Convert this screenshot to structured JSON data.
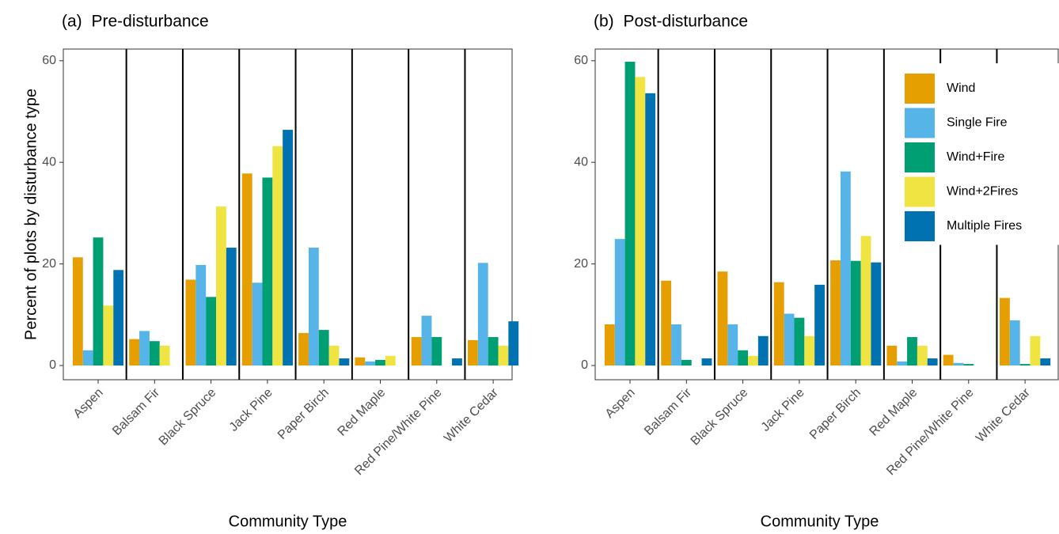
{
  "chart_data": [
    {
      "type": "bar",
      "title": "(a) Pre-disturbance",
      "xlabel": "Community Type",
      "ylabel": "Percent of plots by disturbance type",
      "categories": [
        "Aspen",
        "Balsam Fir",
        "Black Spruce",
        "Jack Pine",
        "Paper Birch",
        "Red Maple",
        "Red Pine/White Pine",
        "White Cedar"
      ],
      "series": [
        {
          "color": "#E69F00",
          "values": [
            21.3,
            5.2,
            16.9,
            37.8,
            6.4,
            1.6,
            5.6,
            5.0
          ]
        },
        {
          "color": "#56B4E9",
          "values": [
            3.0,
            6.8,
            19.8,
            16.3,
            23.2,
            0.8,
            9.8,
            20.2
          ]
        },
        {
          "color": "#009E73",
          "values": [
            25.2,
            4.8,
            13.5,
            37.0,
            7.0,
            1.1,
            5.6,
            5.6
          ]
        },
        {
          "color": "#F0E442",
          "values": [
            11.8,
            3.9,
            31.3,
            43.2,
            3.9,
            1.9,
            0,
            3.9
          ]
        },
        {
          "color": "#0072B2",
          "values": [
            18.8,
            0,
            23.2,
            46.4,
            1.4,
            0,
            1.4,
            8.7
          ]
        }
      ],
      "ylim": [
        -2.8,
        62.3
      ],
      "yticks": [
        0,
        20,
        40,
        60
      ],
      "grid": false
    },
    {
      "type": "bar",
      "title": "(b) Post-disturbance",
      "xlabel": "Community Type",
      "categories": [
        "Aspen",
        "Balsam Fir",
        "Black Spruce",
        "Jack Pine",
        "Paper Birch",
        "Red Maple",
        "Red Pine/White Pine",
        "White Cedar"
      ],
      "series": [
        {
          "name": "Wind",
          "color": "#E69F00",
          "values": [
            8.1,
            16.7,
            18.5,
            16.4,
            20.7,
            3.9,
            2.1,
            13.3
          ]
        },
        {
          "name": "Single Fire",
          "color": "#56B4E9",
          "values": [
            24.9,
            8.1,
            8.1,
            10.2,
            38.2,
            0.8,
            0.5,
            8.9
          ]
        },
        {
          "name": "Wind+Fire",
          "color": "#009E73",
          "values": [
            59.8,
            1.1,
            3.0,
            9.4,
            20.6,
            5.6,
            0.3,
            0.3
          ]
        },
        {
          "name": "Wind+2Fires",
          "color": "#F0E442",
          "values": [
            56.8,
            0,
            1.9,
            5.8,
            25.5,
            3.9,
            0,
            5.8
          ]
        },
        {
          "name": "Multiple Fires",
          "color": "#0072B2",
          "values": [
            53.6,
            1.4,
            5.8,
            15.9,
            20.3,
            1.4,
            0,
            1.4
          ]
        }
      ],
      "ylim": [
        -2.8,
        62.3
      ],
      "yticks": [
        0,
        20,
        40,
        60
      ],
      "grid": false,
      "legend": "top-right"
    }
  ]
}
